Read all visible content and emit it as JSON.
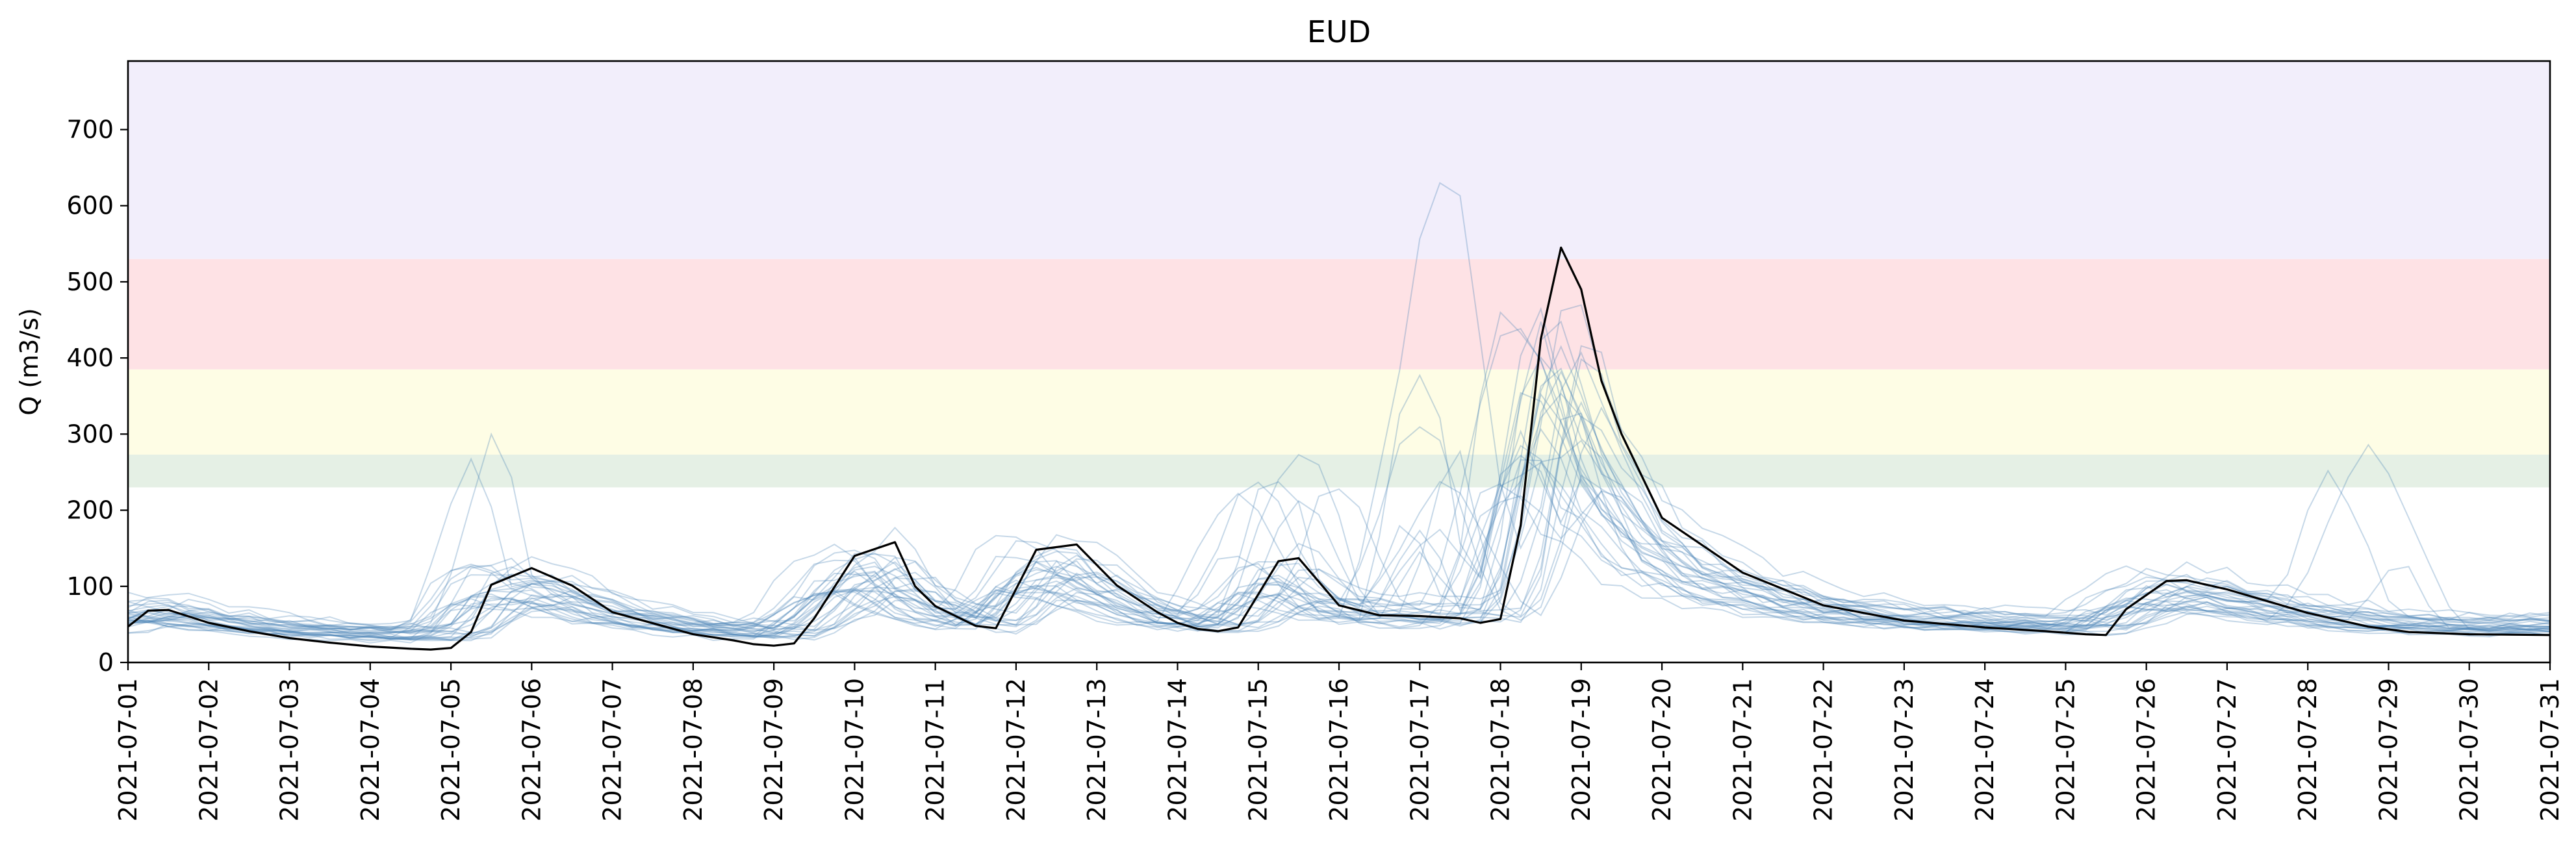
{
  "chart_data": {
    "type": "line",
    "title": "EUD",
    "xlabel": "",
    "ylabel": "Q (m3/s)",
    "xlim": [
      "2021-07-01",
      "2021-07-31"
    ],
    "ylim": [
      0,
      790
    ],
    "y_ticks": [
      0,
      100,
      200,
      300,
      400,
      500,
      600,
      700
    ],
    "x_ticks": [
      "2021-07-01",
      "2021-07-02",
      "2021-07-03",
      "2021-07-04",
      "2021-07-05",
      "2021-07-06",
      "2021-07-07",
      "2021-07-08",
      "2021-07-09",
      "2021-07-10",
      "2021-07-11",
      "2021-07-12",
      "2021-07-13",
      "2021-07-14",
      "2021-07-15",
      "2021-07-16",
      "2021-07-17",
      "2021-07-18",
      "2021-07-19",
      "2021-07-20",
      "2021-07-21",
      "2021-07-22",
      "2021-07-23",
      "2021-07-24",
      "2021-07-25",
      "2021-07-26",
      "2021-07-27",
      "2021-07-28",
      "2021-07-29",
      "2021-07-30",
      "2021-07-31"
    ],
    "grid": false,
    "bands": [
      {
        "from": 230,
        "to": 273,
        "color": "#e5f0e5"
      },
      {
        "from": 273,
        "to": 385,
        "color": "#fefde5"
      },
      {
        "from": 385,
        "to": 530,
        "color": "#fee2e5"
      },
      {
        "from": 530,
        "to": 790,
        "color": "#f2eefb"
      }
    ],
    "colors": {
      "observed": "#000000",
      "members": "#4f86b8"
    },
    "series": [
      {
        "role": "observed",
        "x": [
          "2021-07-01T00:00",
          "2021-07-01T06:00",
          "2021-07-01T12:00",
          "2021-07-02T00:00",
          "2021-07-02T12:00",
          "2021-07-03T00:00",
          "2021-07-03T12:00",
          "2021-07-04T00:00",
          "2021-07-04T12:00",
          "2021-07-04T18:00",
          "2021-07-05T00:00",
          "2021-07-05T06:00",
          "2021-07-05T12:00",
          "2021-07-06T00:00",
          "2021-07-06T12:00",
          "2021-07-07T00:00",
          "2021-07-08T00:00",
          "2021-07-08T12:00",
          "2021-07-08T18:00",
          "2021-07-09T00:00",
          "2021-07-09T06:00",
          "2021-07-09T12:00",
          "2021-07-10T00:00",
          "2021-07-10T12:00",
          "2021-07-10T18:00",
          "2021-07-11T00:00",
          "2021-07-11T12:00",
          "2021-07-11T18:00",
          "2021-07-12T06:00",
          "2021-07-12T18:00",
          "2021-07-13T06:00",
          "2021-07-13T18:00",
          "2021-07-14T00:00",
          "2021-07-14T06:00",
          "2021-07-14T12:00",
          "2021-07-14T18:00",
          "2021-07-15T06:00",
          "2021-07-15T12:00",
          "2021-07-16T00:00",
          "2021-07-16T12:00",
          "2021-07-17T00:00",
          "2021-07-17T12:00",
          "2021-07-17T18:00",
          "2021-07-18T00:00",
          "2021-07-18T06:00",
          "2021-07-18T12:00",
          "2021-07-18T18:00",
          "2021-07-19T00:00",
          "2021-07-19T06:00",
          "2021-07-19T12:00",
          "2021-07-20T00:00",
          "2021-07-21T00:00",
          "2021-07-22T00:00",
          "2021-07-23T00:00",
          "2021-07-24T00:00",
          "2021-07-24T18:00",
          "2021-07-25T06:00",
          "2021-07-25T12:00",
          "2021-07-25T18:00",
          "2021-07-26T06:00",
          "2021-07-26T12:00",
          "2021-07-27T00:00",
          "2021-07-28T00:00",
          "2021-07-28T18:00",
          "2021-07-29T06:00",
          "2021-07-30T00:00",
          "2021-07-31T00:00"
        ],
        "y": [
          47,
          68,
          69,
          52,
          41,
          32,
          26,
          21,
          18,
          17,
          19,
          40,
          102,
          124,
          101,
          66,
          37,
          29,
          24,
          22,
          25,
          58,
          140,
          158,
          100,
          74,
          48,
          45,
          148,
          155,
          101,
          66,
          52,
          44,
          41,
          46,
          133,
          137,
          75,
          62,
          61,
          58,
          52,
          57,
          180,
          425,
          545,
          490,
          370,
          300,
          190,
          118,
          75,
          55,
          46,
          41,
          37,
          36,
          70,
          107,
          108,
          96,
          65,
          47,
          40,
          37,
          36
        ]
      }
    ],
    "members_note": "31 ensemble members drawn as thin light-blue lines; peaks include ~260 at 07-05, ~610 at 07-17, ~435 at 07-18, ~385 at 07-18, ~245 at 07-28"
  }
}
